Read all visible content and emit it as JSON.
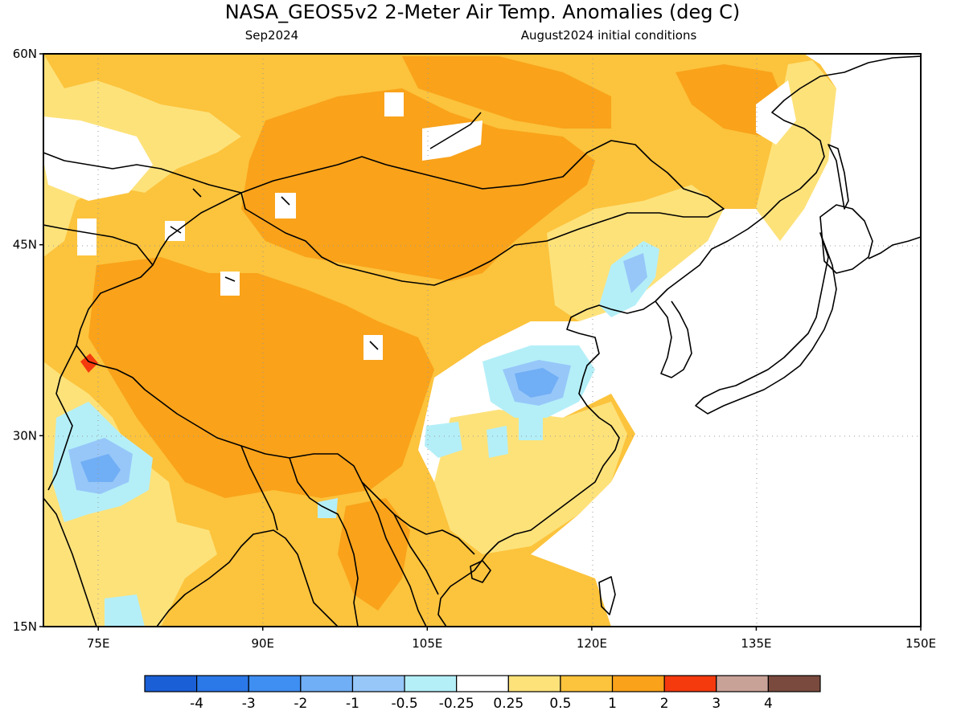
{
  "title": "NASA_GEOS5v2 2-Meter Air Temp. Anomalies (deg C)",
  "subtitle_left": "Sep2024",
  "subtitle_right": "August2024 initial conditions",
  "map": {
    "lon_range": [
      70,
      150
    ],
    "lat_range": [
      15,
      60
    ],
    "lat_ticks": [
      {
        "value": 60,
        "label": "60N"
      },
      {
        "value": 45,
        "label": "45N"
      },
      {
        "value": 30,
        "label": "30N"
      },
      {
        "value": 15,
        "label": "15N"
      }
    ],
    "lon_ticks": [
      {
        "value": 75,
        "label": "75E"
      },
      {
        "value": 90,
        "label": "90E"
      },
      {
        "value": 105,
        "label": "105E"
      },
      {
        "value": 120,
        "label": "120E"
      },
      {
        "value": 135,
        "label": "135E"
      },
      {
        "value": 150,
        "label": "150E"
      }
    ],
    "background_color": "#fcc33c"
  },
  "colorbar": {
    "colors": [
      "#1a5fd6",
      "#2b78e8",
      "#3f8ff2",
      "#70aef5",
      "#97c7f9",
      "#b4eff8",
      "#ffffff",
      "#fde27a",
      "#fcc33c",
      "#f9a21a",
      "#f53a0e",
      "#c9a297",
      "#7a4a3e"
    ],
    "labels": [
      "-4",
      "-3",
      "-2",
      "-1",
      "-0.5",
      "-0.25",
      "0.25",
      "0.5",
      "1",
      "2",
      "3",
      "4"
    ]
  }
}
